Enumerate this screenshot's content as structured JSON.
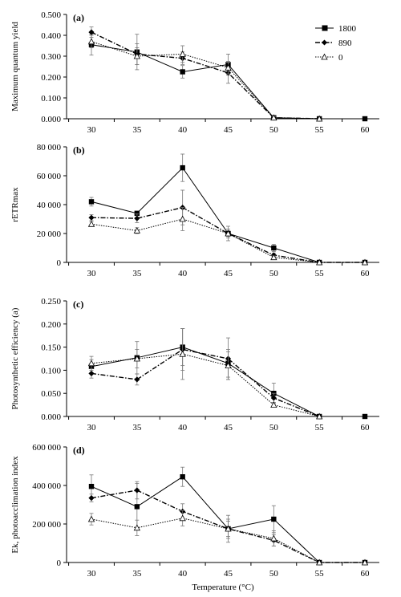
{
  "legend": {
    "entries": [
      {
        "label": "1800",
        "series": "s1800"
      },
      {
        "label": "890",
        "series": "s890"
      },
      {
        "label": "0",
        "series": "s0"
      }
    ]
  },
  "chart_data": [
    {
      "type": "line",
      "panel_label": "(a)",
      "ylabel": "Maximum quantum yield",
      "xlabel": "",
      "x": [
        30,
        35,
        40,
        45,
        50,
        55,
        60
      ],
      "ylim": [
        0,
        0.5
      ],
      "yticks": [
        "0.000",
        "0.100",
        "0.200",
        "0.300",
        "0.400",
        "0.500"
      ],
      "grid": false,
      "series": [
        {
          "name": "1800",
          "values": [
            0.355,
            0.32,
            0.225,
            0.26,
            0.005,
            0.0,
            0.0
          ],
          "errors": [
            0.05,
            0.085,
            0.03,
            0.05,
            0.006,
            0,
            0
          ]
        },
        {
          "name": "890",
          "values": [
            0.415,
            0.31,
            0.29,
            0.22,
            0.005,
            0.0,
            null
          ],
          "errors": [
            0.025,
            0.05,
            0.03,
            0.05,
            0.006,
            0,
            0
          ]
        },
        {
          "name": "0",
          "values": [
            0.37,
            0.3,
            0.31,
            0.245,
            0.005,
            0.0,
            null
          ],
          "errors": [
            0.03,
            0.04,
            0.04,
            0.03,
            0.006,
            0,
            0
          ]
        }
      ]
    },
    {
      "type": "line",
      "panel_label": "(b)",
      "ylabel": "rETRmax",
      "xlabel": "",
      "x": [
        30,
        35,
        40,
        45,
        50,
        55,
        60
      ],
      "ylim": [
        0,
        80000
      ],
      "yticks": [
        "0",
        "20 000",
        "40 000",
        "60 000",
        "80 000"
      ],
      "grid": false,
      "series": [
        {
          "name": "1800",
          "values": [
            42000,
            34000,
            65500,
            20000,
            10000,
            0,
            0
          ],
          "errors": [
            3000,
            0,
            9500,
            5000,
            2500,
            0,
            0
          ]
        },
        {
          "name": "890",
          "values": [
            31000,
            30500,
            38000,
            20000,
            5000,
            0,
            0
          ],
          "errors": [
            2000,
            3000,
            12000,
            3000,
            1500,
            0,
            0
          ]
        },
        {
          "name": "0",
          "values": [
            26500,
            22000,
            30000,
            20000,
            3500,
            0,
            0
          ],
          "errors": [
            1500,
            2000,
            8000,
            2000,
            1000,
            0,
            0
          ]
        }
      ]
    },
    {
      "type": "line",
      "panel_label": "(c)",
      "ylabel": "Photosynthetic efficiency (a)",
      "xlabel": "",
      "x": [
        30,
        35,
        40,
        45,
        50,
        55,
        60
      ],
      "ylim": [
        0,
        0.25
      ],
      "yticks": [
        "0.000",
        "0.050",
        "0.100",
        "0.150",
        "0.200",
        "0.250"
      ],
      "grid": false,
      "series": [
        {
          "name": "1800",
          "values": [
            0.108,
            0.127,
            0.15,
            0.115,
            0.05,
            0.0,
            0.0
          ],
          "errors": [
            0.015,
            0.035,
            0.04,
            0.03,
            0.022,
            0,
            0
          ]
        },
        {
          "name": "890",
          "values": [
            0.093,
            0.08,
            0.145,
            0.125,
            0.04,
            0.0,
            null
          ],
          "errors": [
            0.01,
            0.012,
            0.045,
            0.045,
            0.01,
            0,
            0
          ]
        },
        {
          "name": "0",
          "values": [
            0.115,
            0.125,
            0.135,
            0.11,
            0.025,
            0.0,
            null
          ],
          "errors": [
            0.015,
            0.02,
            0.055,
            0.03,
            0.005,
            0,
            0
          ]
        }
      ]
    },
    {
      "type": "line",
      "panel_label": "(d)",
      "ylabel": "Ek, photoacclimation index",
      "xlabel": "Temperature (°C)",
      "x": [
        30,
        35,
        40,
        45,
        50,
        55,
        60
      ],
      "ylim": [
        0,
        600000
      ],
      "yticks": [
        "0",
        "200 000",
        "400 000",
        "600 000"
      ],
      "grid": false,
      "series": [
        {
          "name": "1800",
          "values": [
            395000,
            290000,
            445000,
            175000,
            225000,
            0,
            0
          ],
          "errors": [
            60000,
            120000,
            50000,
            40000,
            70000,
            0,
            0
          ]
        },
        {
          "name": "890",
          "values": [
            335000,
            375000,
            265000,
            175000,
            115000,
            0,
            0
          ],
          "errors": [
            20000,
            45000,
            40000,
            50000,
            30000,
            0,
            0
          ]
        },
        {
          "name": "0",
          "values": [
            225000,
            180000,
            230000,
            175000,
            125000,
            0,
            0
          ],
          "errors": [
            30000,
            40000,
            40000,
            70000,
            40000,
            0,
            0
          ]
        }
      ]
    }
  ]
}
